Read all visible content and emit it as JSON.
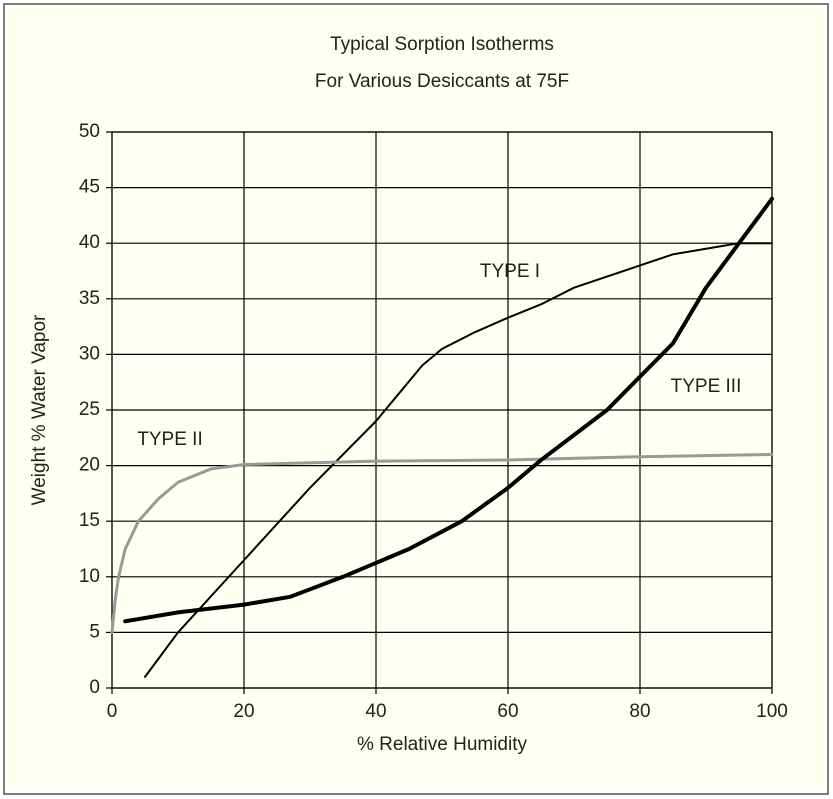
{
  "chart_data": {
    "type": "line",
    "title": [
      "Typical Sorption Isotherms",
      "For Various Desiccants at 75F"
    ],
    "x_label": "% Relative Humidity",
    "y_label": "Weight % Water Vapor",
    "xlim": [
      0,
      100
    ],
    "ylim": [
      0,
      50
    ],
    "xticks": [
      0,
      20,
      40,
      60,
      80,
      100
    ],
    "yticks": [
      0,
      5,
      10,
      15,
      20,
      25,
      30,
      35,
      40,
      45,
      50
    ],
    "grid": true,
    "series": [
      {
        "name": "TYPE I",
        "color": "#000000",
        "line_width": 2,
        "x": [
          5,
          10,
          20,
          30,
          40,
          47,
          50,
          55,
          60,
          65,
          70,
          75,
          80,
          85,
          90,
          95,
          100
        ],
        "values": [
          1,
          5,
          11.5,
          18,
          24,
          29,
          30.5,
          32,
          33.3,
          34.5,
          36,
          37,
          38,
          39,
          39.5,
          40,
          40
        ]
      },
      {
        "name": "TYPE II",
        "color": "#999999",
        "line_width": 3,
        "x": [
          0,
          0.5,
          1,
          2,
          4,
          7,
          10,
          15,
          20,
          40,
          60,
          80,
          100
        ],
        "values": [
          5,
          8,
          10,
          12.5,
          15,
          17,
          18.5,
          19.7,
          20.1,
          20.4,
          20.5,
          20.8,
          21
        ]
      },
      {
        "name": "TYPE III",
        "color": "#000000",
        "line_width": 4,
        "x": [
          2,
          10,
          20,
          27,
          35,
          45,
          53,
          60,
          65,
          75,
          85,
          90,
          95,
          100
        ],
        "values": [
          6,
          6.8,
          7.5,
          8.2,
          10,
          12.5,
          15,
          18,
          20.5,
          25,
          31,
          36,
          40,
          44
        ]
      }
    ]
  }
}
